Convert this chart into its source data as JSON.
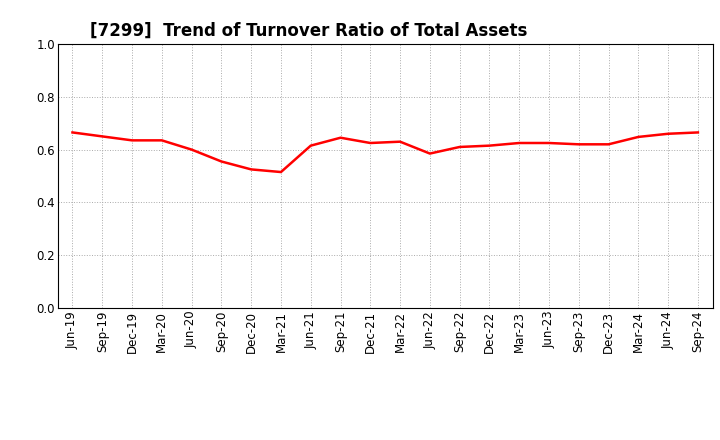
{
  "title": "[7299]  Trend of Turnover Ratio of Total Assets",
  "x_labels": [
    "Jun-19",
    "Sep-19",
    "Dec-19",
    "Mar-20",
    "Jun-20",
    "Sep-20",
    "Dec-20",
    "Mar-21",
    "Jun-21",
    "Sep-21",
    "Dec-21",
    "Mar-22",
    "Jun-22",
    "Sep-22",
    "Dec-22",
    "Mar-23",
    "Jun-23",
    "Sep-23",
    "Dec-23",
    "Mar-24",
    "Jun-24",
    "Sep-24"
  ],
  "values": [
    0.665,
    0.65,
    0.635,
    0.635,
    0.6,
    0.555,
    0.525,
    0.515,
    0.615,
    0.645,
    0.625,
    0.63,
    0.585,
    0.61,
    0.615,
    0.625,
    0.625,
    0.62,
    0.62,
    0.648,
    0.66,
    0.665
  ],
  "line_color": "#FF0000",
  "line_width": 1.8,
  "ylim": [
    0.0,
    1.0
  ],
  "yticks": [
    0.0,
    0.2,
    0.4,
    0.6,
    0.8,
    1.0
  ],
  "background_color": "#FFFFFF",
  "grid_color": "#AAAAAA",
  "title_fontsize": 12,
  "tick_fontsize": 8.5
}
